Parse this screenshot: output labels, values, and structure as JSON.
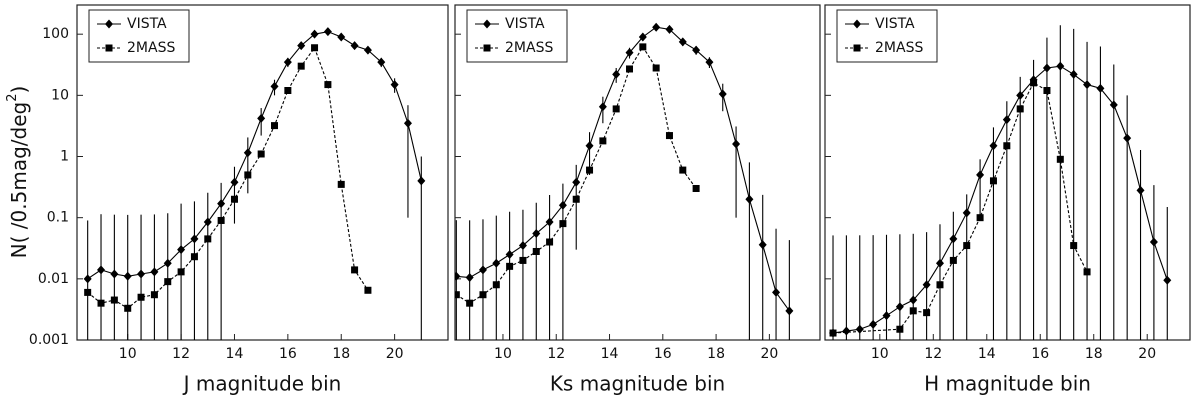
{
  "chart_data": [
    {
      "type": "line",
      "xlabel": "J magnitude bin",
      "ylabel": "N( /0.5mag/deg",
      "ylabel_sup": "2",
      "ylabel_end": ")",
      "xlim": [
        8.1,
        22.0
      ],
      "xticks": [
        10,
        12,
        14,
        16,
        18,
        20
      ],
      "ylim": [
        0.001,
        300
      ],
      "yticks": [
        0.001,
        0.01,
        0.1,
        1,
        10,
        100
      ],
      "log_y": true,
      "legend": "upper left",
      "series": [
        {
          "name": "VISTA",
          "color": "#000000",
          "linestyle": "solid",
          "marker": "diamond",
          "x": [
            8.5,
            9,
            9.5,
            10,
            10.5,
            11,
            11.5,
            12,
            12.5,
            13,
            13.5,
            14,
            14.5,
            15,
            15.5,
            16,
            16.5,
            17,
            17.5,
            18,
            18.5,
            19,
            19.5,
            20,
            20.5,
            21
          ],
          "values": [
            0.01,
            0.014,
            0.012,
            0.011,
            0.012,
            0.013,
            0.018,
            0.03,
            0.045,
            0.085,
            0.17,
            0.38,
            1.15,
            4.2,
            14,
            35,
            65,
            100,
            110,
            90,
            65,
            55,
            35,
            15,
            3.5,
            0.4
          ],
          "errors": [
            0.08,
            0.1,
            0.1,
            0.1,
            0.1,
            0.1,
            0.1,
            0.14,
            0.14,
            0.17,
            0.2,
            0.3,
            0.9,
            2,
            4,
            6,
            8,
            10,
            10,
            9,
            8,
            7,
            6,
            4,
            3.4,
            0.6
          ]
        },
        {
          "name": "2MASS",
          "color": "#000000",
          "linestyle": "dashed",
          "marker": "square",
          "x": [
            8.5,
            9,
            9.5,
            10,
            10.5,
            11,
            11.5,
            12,
            12.5,
            13,
            13.5,
            14,
            14.5,
            15,
            15.5,
            16,
            16.5,
            17,
            17.5,
            18,
            18.5,
            19
          ],
          "values": [
            0.006,
            0.004,
            0.0045,
            0.0033,
            0.005,
            0.0055,
            0.009,
            0.013,
            0.023,
            0.045,
            0.09,
            0.2,
            0.5,
            1.1,
            3.2,
            12,
            30,
            60,
            15,
            0.35,
            0.014,
            0.0065
          ]
        }
      ]
    },
    {
      "type": "line",
      "xlabel": "Ks magnitude bin",
      "xlim": [
        8.2,
        21.9
      ],
      "xticks": [
        10,
        12,
        14,
        16,
        18,
        20
      ],
      "ylim": [
        0.001,
        300
      ],
      "yticks": [
        0.001,
        0.01,
        0.1,
        1,
        10,
        100
      ],
      "log_y": true,
      "legend": "upper left",
      "series": [
        {
          "name": "VISTA",
          "color": "#000000",
          "linestyle": "solid",
          "marker": "diamond",
          "x": [
            8.25,
            8.75,
            9.25,
            9.75,
            10.25,
            10.75,
            11.25,
            11.75,
            12.25,
            12.75,
            13.25,
            13.75,
            14.25,
            14.75,
            15.25,
            15.75,
            16.25,
            16.75,
            17.25,
            17.75,
            18.25,
            18.75,
            19.25,
            19.75,
            20.25,
            20.75
          ],
          "values": [
            0.011,
            0.0105,
            0.014,
            0.018,
            0.025,
            0.035,
            0.055,
            0.085,
            0.16,
            0.38,
            1.5,
            6.5,
            22,
            50,
            90,
            130,
            120,
            75,
            55,
            35,
            10.5,
            1.6,
            0.2,
            0.036,
            0.006,
            0.003
          ],
          "errors": [
            0.08,
            0.08,
            0.08,
            0.09,
            0.1,
            0.1,
            0.12,
            0.15,
            0.2,
            0.35,
            1,
            3,
            6,
            10,
            12,
            15,
            14,
            11,
            9,
            7,
            5,
            1.5,
            0.6,
            0.2,
            0.06,
            0.04
          ]
        },
        {
          "name": "2MASS",
          "color": "#000000",
          "linestyle": "dashed",
          "marker": "square",
          "x": [
            8.25,
            8.75,
            9.25,
            9.75,
            10.25,
            10.75,
            11.25,
            11.75,
            12.25,
            12.75,
            13.25,
            13.75,
            14.25,
            14.75,
            15.25,
            15.75,
            16.25,
            16.75,
            17.25
          ],
          "values": [
            0.0055,
            0.004,
            0.0055,
            0.008,
            0.016,
            0.02,
            0.028,
            0.04,
            0.08,
            0.2,
            0.6,
            1.8,
            6,
            27,
            62,
            28,
            2.2,
            0.6,
            0.3
          ]
        }
      ]
    },
    {
      "type": "line",
      "xlabel": "H magnitude bin",
      "xlim": [
        7.95,
        21.6
      ],
      "xticks": [
        10,
        12,
        14,
        16,
        18,
        20
      ],
      "ylim": [
        0.001,
        300
      ],
      "yticks": [
        0.001,
        0.01,
        0.1,
        1,
        10,
        100
      ],
      "log_y": true,
      "legend": "upper left",
      "series": [
        {
          "name": "VISTA",
          "color": "#000000",
          "linestyle": "solid",
          "marker": "diamond",
          "x": [
            8.25,
            8.75,
            9.25,
            9.75,
            10.25,
            10.75,
            11.25,
            11.75,
            12.25,
            12.75,
            13.25,
            13.75,
            14.25,
            14.75,
            15.25,
            15.75,
            16.25,
            16.75,
            17.25,
            17.75,
            18.25,
            18.75,
            19.25,
            19.75,
            20.25,
            20.75
          ],
          "values": [
            0.0013,
            0.0014,
            0.0015,
            0.0018,
            0.0025,
            0.0035,
            0.0045,
            0.008,
            0.018,
            0.045,
            0.12,
            0.5,
            1.5,
            4,
            10,
            18,
            28,
            30,
            22,
            15,
            13,
            7,
            2,
            0.28,
            0.04,
            0.0095
          ],
          "errors": [
            0.05,
            0.05,
            0.05,
            0.05,
            0.05,
            0.05,
            0.05,
            0.05,
            0.06,
            0.08,
            0.12,
            0.4,
            1.5,
            4,
            10,
            20,
            60,
            110,
            100,
            60,
            50,
            25,
            8,
            1,
            0.3,
            0.14
          ]
        },
        {
          "name": "2MASS",
          "color": "#000000",
          "linestyle": "dashed",
          "marker": "square",
          "x": [
            8.25,
            10.75,
            11.25,
            11.75,
            12.25,
            12.75,
            13.25,
            13.75,
            14.25,
            14.75,
            15.25,
            15.75,
            16.25,
            16.75,
            17.25,
            17.75
          ],
          "values": [
            0.0013,
            0.0015,
            0.003,
            0.0028,
            0.008,
            0.02,
            0.035,
            0.1,
            0.4,
            1.5,
            6,
            16,
            12,
            0.9,
            0.035,
            0.013
          ]
        }
      ]
    }
  ]
}
